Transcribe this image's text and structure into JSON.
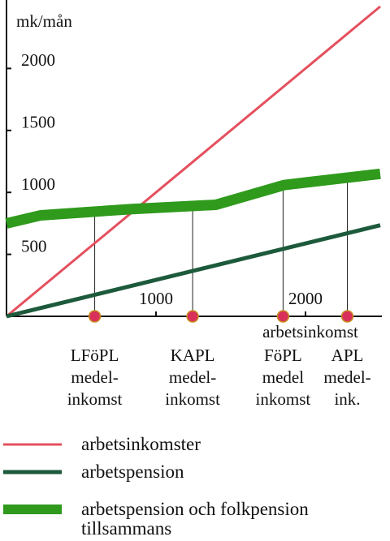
{
  "chart_data": {
    "type": "line",
    "y_label": "mk/mån",
    "x_label": "arbetsinkomst",
    "xlim": [
      0,
      2500
    ],
    "ylim": [
      0,
      2500
    ],
    "xticks": [
      1000,
      2000
    ],
    "yticks": [
      500,
      1000,
      1500,
      2000
    ],
    "series": [
      {
        "name": "arbetsinkomster",
        "color": "#e4505e",
        "x": [
          0,
          2500
        ],
        "values": [
          0,
          2500
        ],
        "width": 3
      },
      {
        "name": "arbetspension",
        "color": "#1d5a3c",
        "x": [
          0,
          2500
        ],
        "values": [
          0,
          735
        ],
        "width": 5
      },
      {
        "name": "arbetspension och folkpension tillsammans",
        "color": "#2f9a1c",
        "x": [
          0,
          230,
          830,
          1400,
          1860,
          2500
        ],
        "values": [
          750,
          815,
          865,
          900,
          1060,
          1150
        ],
        "width": 13
      }
    ],
    "markers": [
      {
        "x": 590,
        "label": [
          "LFöPL",
          "medel-",
          "inkomst"
        ]
      },
      {
        "x": 1245,
        "label": [
          "KAPL",
          "medel-",
          "inkomst"
        ]
      },
      {
        "x": 1850,
        "label": [
          "FöPL",
          "medel",
          "inkomst"
        ]
      },
      {
        "x": 2280,
        "label": [
          "APL",
          "medel-",
          "ink."
        ]
      }
    ]
  }
}
